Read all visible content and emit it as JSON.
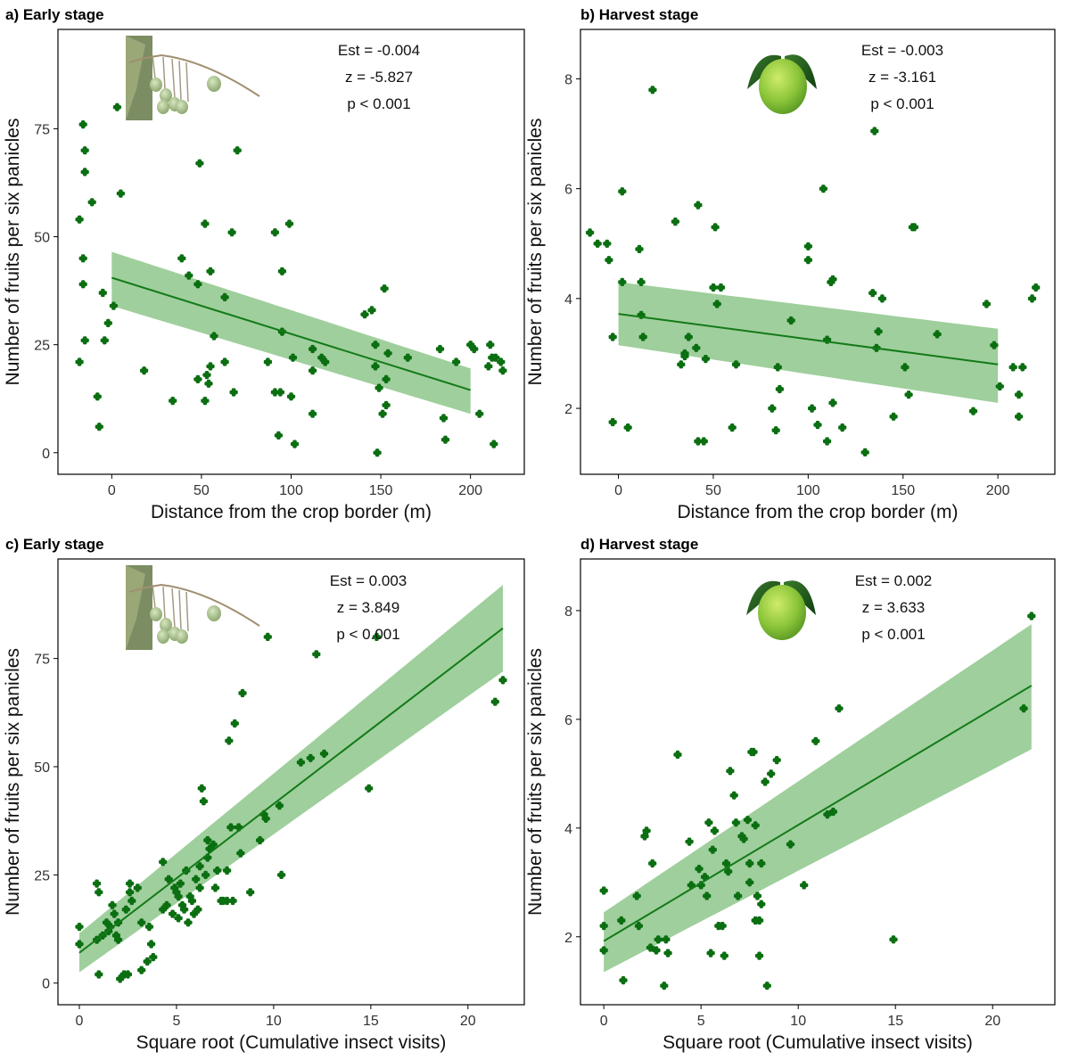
{
  "colors": {
    "point": "#0b6f12",
    "line": "#137a18",
    "band": "#7fbf7b",
    "frame": "#000000",
    "tick_text": "#333333"
  },
  "chart_data": [
    {
      "id": "a",
      "type": "scatter",
      "title": "a) Early stage",
      "xlabel": "Distance from the crop border (m)",
      "ylabel": "Number of fruits per six panicles",
      "xlim": [
        -30,
        230
      ],
      "ylim": [
        -5,
        98
      ],
      "xticks": [
        0,
        50,
        100,
        150,
        200
      ],
      "yticks": [
        0,
        25,
        50,
        75
      ],
      "stats": [
        "Est = -0.004",
        "z = -5.827",
        "p < 0.001"
      ],
      "icon": "mango-branch-icon",
      "grid": false,
      "points": [
        [
          -18,
          54
        ],
        [
          -16,
          76
        ],
        [
          -15,
          70
        ],
        [
          -15,
          65
        ],
        [
          -16,
          45
        ],
        [
          -16,
          39
        ],
        [
          -15,
          26
        ],
        [
          -18,
          21
        ],
        [
          -11,
          58
        ],
        [
          -8,
          13
        ],
        [
          -7,
          6
        ],
        [
          -5,
          37
        ],
        [
          -4,
          26
        ],
        [
          -2,
          30
        ],
        [
          1,
          34
        ],
        [
          3,
          80
        ],
        [
          5,
          60
        ],
        [
          18,
          19
        ],
        [
          34,
          12
        ],
        [
          39,
          45
        ],
        [
          43,
          41
        ],
        [
          49,
          67
        ],
        [
          48,
          39
        ],
        [
          48,
          17
        ],
        [
          52,
          12
        ],
        [
          53,
          18
        ],
        [
          52,
          53
        ],
        [
          54,
          16
        ],
        [
          55,
          20
        ],
        [
          55,
          42
        ],
        [
          57,
          27
        ],
        [
          63,
          21
        ],
        [
          63,
          36
        ],
        [
          67,
          51
        ],
        [
          68,
          14
        ],
        [
          70,
          70
        ],
        [
          87,
          21
        ],
        [
          91,
          51
        ],
        [
          91,
          14
        ],
        [
          93,
          4
        ],
        [
          94,
          14
        ],
        [
          95,
          42
        ],
        [
          95,
          28
        ],
        [
          99,
          53
        ],
        [
          100,
          13
        ],
        [
          101,
          22
        ],
        [
          102,
          2
        ],
        [
          112,
          9
        ],
        [
          112,
          19
        ],
        [
          112,
          24
        ],
        [
          117,
          22
        ],
        [
          119,
          21
        ],
        [
          141,
          32
        ],
        [
          145,
          33
        ],
        [
          147,
          25
        ],
        [
          147,
          20
        ],
        [
          148,
          0
        ],
        [
          149,
          15
        ],
        [
          151,
          9
        ],
        [
          152,
          38
        ],
        [
          153,
          11
        ],
        [
          153,
          17
        ],
        [
          154,
          23
        ],
        [
          165,
          22
        ],
        [
          183,
          24
        ],
        [
          185,
          8
        ],
        [
          186,
          3
        ],
        [
          192,
          21
        ],
        [
          200,
          25
        ],
        [
          202,
          24
        ],
        [
          205,
          9
        ],
        [
          210,
          20
        ],
        [
          211,
          25
        ],
        [
          212,
          22
        ],
        [
          213,
          2
        ],
        [
          214,
          22
        ],
        [
          217,
          21
        ],
        [
          218,
          19
        ]
      ],
      "fit": {
        "x": [
          0,
          200
        ],
        "y": [
          40.5,
          14.5
        ],
        "lower": [
          34.0,
          9.0
        ],
        "upper": [
          46.5,
          19.5
        ]
      }
    },
    {
      "id": "b",
      "type": "scatter",
      "title": "b) Harvest stage",
      "xlabel": "Distance from the crop border (m)",
      "ylabel": "Number of fruits per six panicles",
      "xlim": [
        -20,
        230
      ],
      "ylim": [
        0.8,
        8.9
      ],
      "xticks": [
        0,
        50,
        100,
        150,
        200
      ],
      "yticks": [
        2,
        4,
        6,
        8
      ],
      "stats": [
        "Est = -0.003",
        "z = -3.161",
        "p < 0.001"
      ],
      "icon": "mango-fruit-icon",
      "grid": false,
      "points": [
        [
          -15,
          5.2
        ],
        [
          -11,
          5.0
        ],
        [
          -6,
          5.0
        ],
        [
          -5,
          4.7
        ],
        [
          -3,
          3.3
        ],
        [
          -3,
          1.75
        ],
        [
          2,
          4.3
        ],
        [
          2,
          5.95
        ],
        [
          5,
          1.65
        ],
        [
          11,
          4.9
        ],
        [
          12,
          4.3
        ],
        [
          12,
          3.7
        ],
        [
          13,
          3.3
        ],
        [
          18,
          7.8
        ],
        [
          30,
          5.4
        ],
        [
          33,
          2.8
        ],
        [
          35,
          3.0
        ],
        [
          35,
          2.95
        ],
        [
          37,
          3.3
        ],
        [
          41,
          3.1
        ],
        [
          42,
          1.4
        ],
        [
          42,
          5.7
        ],
        [
          45,
          1.4
        ],
        [
          46,
          2.9
        ],
        [
          50,
          4.2
        ],
        [
          51,
          5.3
        ],
        [
          52,
          3.9
        ],
        [
          54,
          4.2
        ],
        [
          60,
          1.65
        ],
        [
          62,
          2.8
        ],
        [
          81,
          2.0
        ],
        [
          83,
          1.6
        ],
        [
          84,
          2.75
        ],
        [
          85,
          2.35
        ],
        [
          91,
          3.6
        ],
        [
          100,
          4.95
        ],
        [
          100,
          4.7
        ],
        [
          102,
          2.0
        ],
        [
          105,
          1.7
        ],
        [
          108,
          6.0
        ],
        [
          110,
          3.25
        ],
        [
          110,
          1.4
        ],
        [
          112,
          4.3
        ],
        [
          113,
          4.35
        ],
        [
          113,
          2.1
        ],
        [
          118,
          1.65
        ],
        [
          130,
          1.2
        ],
        [
          134,
          4.1
        ],
        [
          135,
          7.05
        ],
        [
          136,
          3.1
        ],
        [
          137,
          3.4
        ],
        [
          139,
          4.0
        ],
        [
          145,
          1.85
        ],
        [
          151,
          2.75
        ],
        [
          153,
          2.25
        ],
        [
          155,
          5.3
        ],
        [
          156,
          5.3
        ],
        [
          168,
          3.35
        ],
        [
          187,
          1.95
        ],
        [
          194,
          3.9
        ],
        [
          198,
          3.15
        ],
        [
          201,
          2.4
        ],
        [
          208,
          2.75
        ],
        [
          211,
          2.25
        ],
        [
          211,
          1.85
        ],
        [
          213,
          2.75
        ],
        [
          218,
          4.0
        ],
        [
          220,
          4.2
        ]
      ],
      "fit": {
        "x": [
          0,
          200
        ],
        "y": [
          3.72,
          2.8
        ],
        "lower": [
          3.15,
          2.1
        ],
        "upper": [
          4.3,
          3.45
        ]
      }
    },
    {
      "id": "c",
      "type": "scatter",
      "title": "c) Early stage",
      "xlabel": "Square root (Cumulative insect visits)",
      "ylabel": "Number of fruits per six panicles",
      "xlim": [
        -1.1,
        22.9
      ],
      "ylim": [
        -5,
        98
      ],
      "xticks": [
        0,
        5,
        10,
        15,
        20
      ],
      "yticks": [
        0,
        25,
        50,
        75
      ],
      "stats": [
        "Est = 0.003",
        "z = 3.849",
        "p < 0.001"
      ],
      "icon": "mango-branch-icon",
      "grid": false,
      "points": [
        [
          0.0,
          13
        ],
        [
          0.0,
          9
        ],
        [
          0.9,
          10
        ],
        [
          0.9,
          23
        ],
        [
          1.0,
          21
        ],
        [
          1.0,
          2
        ],
        [
          1.2,
          11
        ],
        [
          1.4,
          14
        ],
        [
          1.5,
          12
        ],
        [
          1.6,
          13
        ],
        [
          1.7,
          18
        ],
        [
          1.8,
          16
        ],
        [
          1.9,
          11
        ],
        [
          2.0,
          14
        ],
        [
          2.0,
          10
        ],
        [
          2.1,
          1
        ],
        [
          2.3,
          2
        ],
        [
          2.4,
          17
        ],
        [
          2.5,
          2
        ],
        [
          2.6,
          21
        ],
        [
          2.6,
          23
        ],
        [
          2.7,
          19
        ],
        [
          3.0,
          22
        ],
        [
          3.2,
          14
        ],
        [
          3.2,
          3
        ],
        [
          3.5,
          5
        ],
        [
          3.6,
          13
        ],
        [
          3.7,
          9
        ],
        [
          3.8,
          6
        ],
        [
          4.3,
          17
        ],
        [
          4.3,
          28
        ],
        [
          4.5,
          18
        ],
        [
          4.6,
          24
        ],
        [
          4.8,
          16
        ],
        [
          4.9,
          22
        ],
        [
          5.0,
          21
        ],
        [
          5.1,
          20
        ],
        [
          5.1,
          15
        ],
        [
          5.2,
          23
        ],
        [
          5.3,
          18
        ],
        [
          5.4,
          17
        ],
        [
          5.5,
          26
        ],
        [
          5.6,
          14
        ],
        [
          5.7,
          20
        ],
        [
          5.8,
          19
        ],
        [
          5.9,
          16
        ],
        [
          6.0,
          24
        ],
        [
          6.1,
          17
        ],
        [
          6.2,
          22
        ],
        [
          6.2,
          27
        ],
        [
          6.3,
          45
        ],
        [
          6.4,
          42
        ],
        [
          6.5,
          25
        ],
        [
          6.6,
          29
        ],
        [
          6.6,
          33
        ],
        [
          6.7,
          31
        ],
        [
          6.9,
          32
        ],
        [
          7.0,
          22
        ],
        [
          7.1,
          26
        ],
        [
          7.3,
          19
        ],
        [
          7.4,
          19
        ],
        [
          7.6,
          19
        ],
        [
          7.6,
          26
        ],
        [
          7.7,
          56
        ],
        [
          7.8,
          36
        ],
        [
          7.9,
          19
        ],
        [
          8.0,
          60
        ],
        [
          8.2,
          36
        ],
        [
          8.3,
          30
        ],
        [
          8.4,
          67
        ],
        [
          8.8,
          21
        ],
        [
          9.3,
          33
        ],
        [
          9.5,
          39
        ],
        [
          9.6,
          38
        ],
        [
          9.7,
          80
        ],
        [
          10.3,
          41
        ],
        [
          10.4,
          25
        ],
        [
          11.4,
          51
        ],
        [
          11.9,
          52
        ],
        [
          12.2,
          76
        ],
        [
          12.6,
          53
        ],
        [
          14.9,
          45
        ],
        [
          15.3,
          80
        ],
        [
          21.4,
          65
        ],
        [
          21.8,
          70
        ]
      ],
      "fit": {
        "x": [
          0,
          21.8
        ],
        "y": [
          7.0,
          82.0
        ],
        "lower": [
          2.5,
          72.0
        ],
        "upper": [
          11.5,
          92.0
        ]
      }
    },
    {
      "id": "d",
      "type": "scatter",
      "title": "d) Harvest stage",
      "xlabel": "Square root (Cumulative insect visits)",
      "ylabel": "Number of fruits per six panicles",
      "xlim": [
        -1.2,
        23.2
      ],
      "ylim": [
        0.75,
        8.95
      ],
      "xticks": [
        0,
        5,
        10,
        15,
        20
      ],
      "yticks": [
        2,
        4,
        6,
        8
      ],
      "stats": [
        "Est = 0.002",
        "z = 3.633",
        "p < 0.001"
      ],
      "icon": "mango-fruit-icon",
      "grid": false,
      "points": [
        [
          0.0,
          2.85
        ],
        [
          0.0,
          2.2
        ],
        [
          0.0,
          1.75
        ],
        [
          0.9,
          2.3
        ],
        [
          1.0,
          1.2
        ],
        [
          1.7,
          2.75
        ],
        [
          1.8,
          2.2
        ],
        [
          2.1,
          3.85
        ],
        [
          2.2,
          3.95
        ],
        [
          2.4,
          1.8
        ],
        [
          2.5,
          3.35
        ],
        [
          2.7,
          1.75
        ],
        [
          2.8,
          1.95
        ],
        [
          3.1,
          1.1
        ],
        [
          3.2,
          1.95
        ],
        [
          3.3,
          1.7
        ],
        [
          3.8,
          5.35
        ],
        [
          4.4,
          3.75
        ],
        [
          4.5,
          2.95
        ],
        [
          4.9,
          3.25
        ],
        [
          5.0,
          2.95
        ],
        [
          5.2,
          3.1
        ],
        [
          5.3,
          2.75
        ],
        [
          5.4,
          4.1
        ],
        [
          5.5,
          1.7
        ],
        [
          5.6,
          3.6
        ],
        [
          5.7,
          3.95
        ],
        [
          5.9,
          2.2
        ],
        [
          6.1,
          2.2
        ],
        [
          6.2,
          1.65
        ],
        [
          6.3,
          3.35
        ],
        [
          6.4,
          3.2
        ],
        [
          6.5,
          5.05
        ],
        [
          6.7,
          4.6
        ],
        [
          6.8,
          4.1
        ],
        [
          6.9,
          2.75
        ],
        [
          7.1,
          3.85
        ],
        [
          7.2,
          3.8
        ],
        [
          7.4,
          4.15
        ],
        [
          7.5,
          3.35
        ],
        [
          7.5,
          3.0
        ],
        [
          7.6,
          5.4
        ],
        [
          7.7,
          5.4
        ],
        [
          7.8,
          2.3
        ],
        [
          7.8,
          4.05
        ],
        [
          7.9,
          2.75
        ],
        [
          8.0,
          2.3
        ],
        [
          8.0,
          1.65
        ],
        [
          8.1,
          2.6
        ],
        [
          8.1,
          3.35
        ],
        [
          8.3,
          4.85
        ],
        [
          8.4,
          1.1
        ],
        [
          8.6,
          5.0
        ],
        [
          8.9,
          5.25
        ],
        [
          9.6,
          3.7
        ],
        [
          10.3,
          2.95
        ],
        [
          10.9,
          5.6
        ],
        [
          11.5,
          4.25
        ],
        [
          11.8,
          4.3
        ],
        [
          12.1,
          6.2
        ],
        [
          14.9,
          1.95
        ],
        [
          21.6,
          6.2
        ],
        [
          22.0,
          7.9
        ]
      ],
      "fit": {
        "x": [
          0,
          22.0
        ],
        "y": [
          1.92,
          6.62
        ],
        "lower": [
          1.35,
          5.45
        ],
        "upper": [
          2.45,
          7.75
        ]
      }
    }
  ]
}
